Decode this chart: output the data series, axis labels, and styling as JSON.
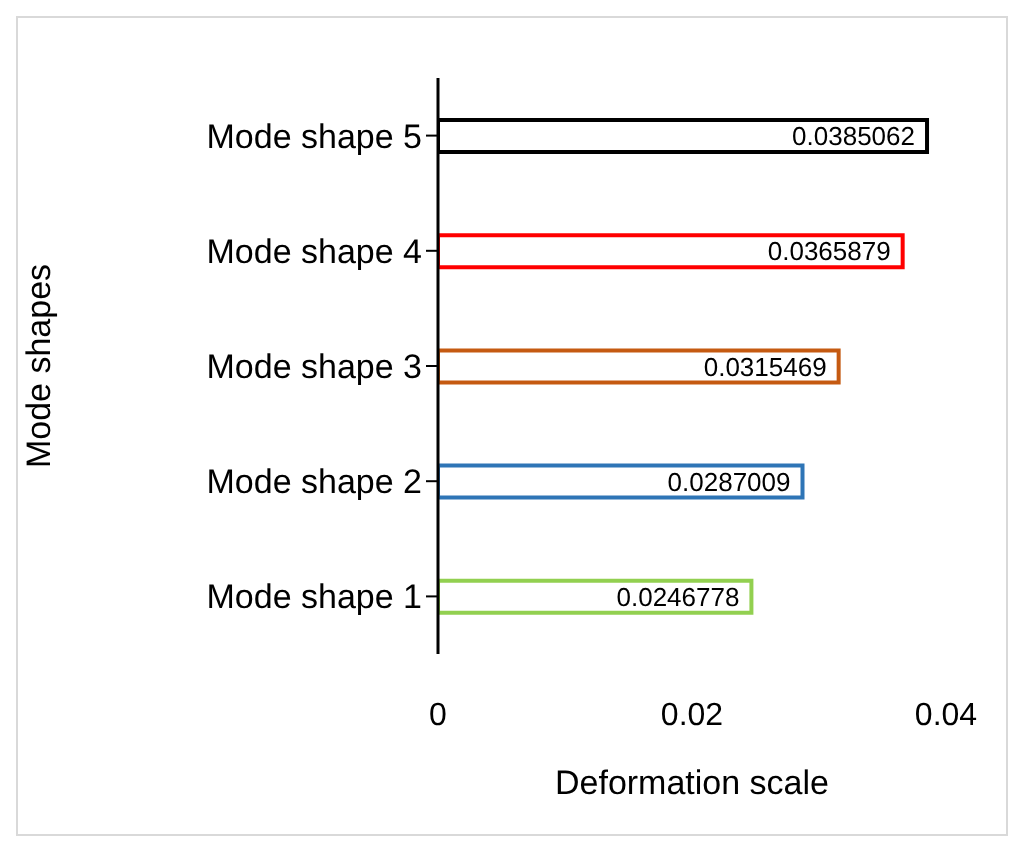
{
  "chart_data": {
    "type": "bar",
    "orientation": "horizontal",
    "xlabel": "Deformation scale",
    "ylabel": "Mode shapes",
    "categories": [
      "Mode shape 5",
      "Mode shape 4",
      "Mode shape 3",
      "Mode shape 2",
      "Mode shape 1"
    ],
    "values": [
      0.0385062,
      0.0365879,
      0.0315469,
      0.0287009,
      0.0246778
    ],
    "colors": [
      "#000000",
      "#ff0000",
      "#c55a11",
      "#2e75b6",
      "#92d050"
    ],
    "xlim": [
      0,
      0.04
    ],
    "xticks": [
      0,
      0.02,
      0.04
    ],
    "data_labels": true
  }
}
